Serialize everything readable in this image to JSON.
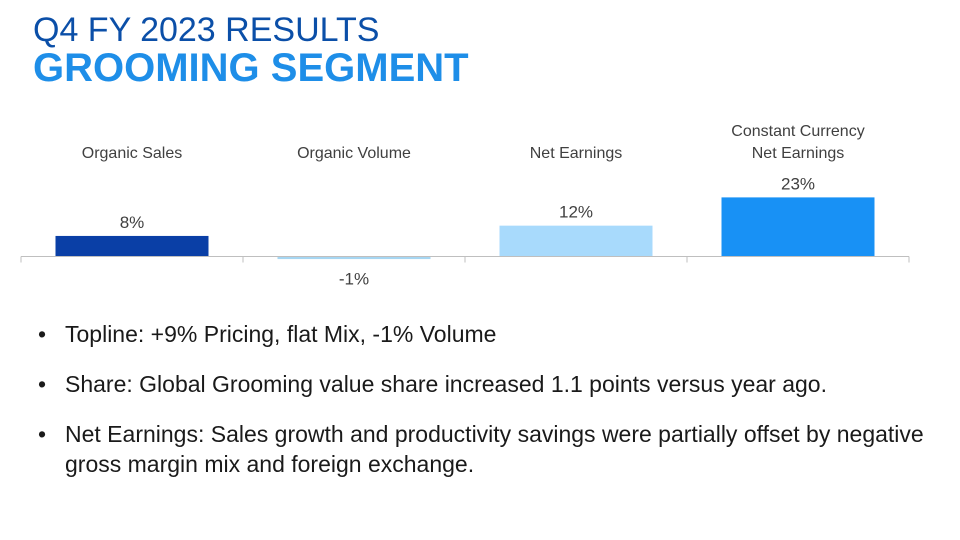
{
  "header": {
    "title_line1": "Q4 FY 2023 RESULTS",
    "title_line2": "GROOMING SEGMENT"
  },
  "colors": {
    "title_dark": "#0b4fa8",
    "title_light": "#1e8ee8",
    "bar_organic_sales": "#0a3fa6",
    "bar_organic_volume": "#a6d6f2",
    "bar_net_earnings": "#a8dafc",
    "bar_cc_net_earnings": "#1891f5"
  },
  "chart_data": {
    "type": "bar",
    "categories": [
      "Organic Sales",
      "Organic Volume",
      "Net Earnings",
      "Constant Currency Net Earnings"
    ],
    "category_lines": [
      [
        "Organic Sales"
      ],
      [
        "Organic Volume"
      ],
      [
        "Net Earnings"
      ],
      [
        "Constant Currency",
        "Net Earnings"
      ]
    ],
    "values": [
      8,
      -1,
      12,
      23
    ],
    "data_labels": [
      "8%",
      "-1%",
      "12%",
      "23%"
    ],
    "title": "",
    "xlabel": "",
    "ylabel": "",
    "ylim": [
      -1,
      23
    ],
    "grid": false,
    "legend": "none"
  },
  "bullets": [
    "Topline: +9% Pricing, flat Mix, -1% Volume",
    "Share: Global Grooming value share increased 1.1 points versus year ago.",
    "Net Earnings: Sales growth and productivity savings were partially offset by negative gross margin mix and foreign exchange."
  ],
  "bullet_glyph": "•"
}
